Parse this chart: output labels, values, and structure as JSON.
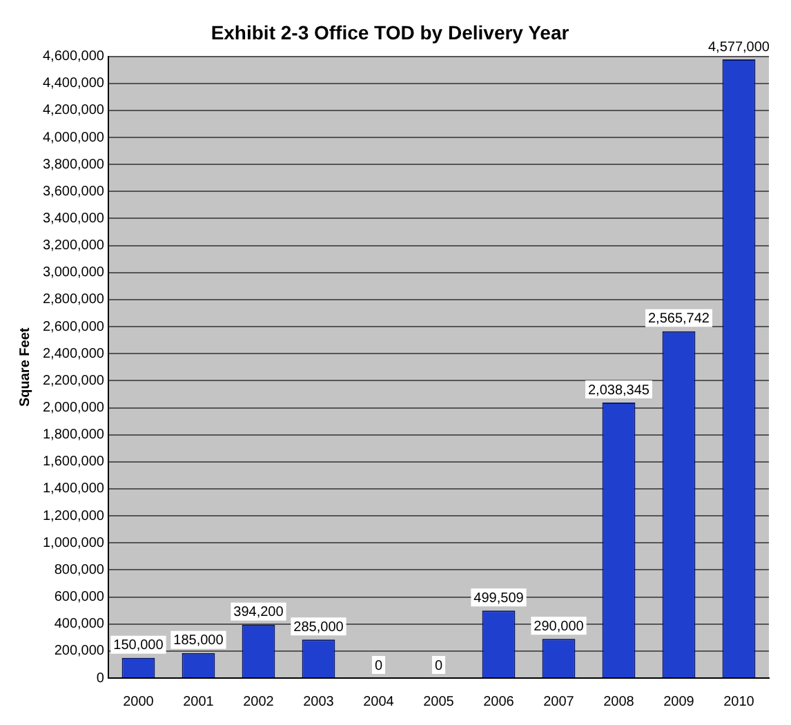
{
  "chart_data": {
    "type": "bar",
    "title": "Exhibit 2-3 Office TOD by Delivery Year",
    "ylabel": "Square Feet",
    "categories": [
      "2000",
      "2001",
      "2002",
      "2003",
      "2004",
      "2005",
      "2006",
      "2007",
      "2008",
      "2009",
      "2010"
    ],
    "values": [
      150000,
      185000,
      394200,
      285000,
      0,
      0,
      499509,
      290000,
      2038345,
      2565742,
      4577000
    ],
    "value_labels": [
      "150,000",
      "185,000",
      "394,200",
      "285,000",
      "0",
      "0",
      "499,509",
      "290,000",
      "2,038,345",
      "2,565,742",
      "4,577,000"
    ],
    "color": "#1f3fcf",
    "ylim": [
      0,
      4600000
    ],
    "yticks": [
      0,
      {
        "value": 200000,
        "label": "200,000"
      },
      {
        "value": 400000,
        "label": "400,000"
      },
      {
        "value": 600000,
        "label": "600,000"
      },
      {
        "value": 800000,
        "label": "800,000"
      },
      {
        "value": 1000000,
        "label": "1,000,000"
      },
      {
        "value": 1200000,
        "label": "1,200,000"
      },
      {
        "value": 1400000,
        "label": "1,400,000"
      },
      {
        "value": 1600000,
        "label": "1,600,000"
      },
      {
        "value": 1800000,
        "label": "1,800,000"
      },
      {
        "value": 2000000,
        "label": "2,000,000"
      },
      {
        "value": 2200000,
        "label": "2,200,000"
      },
      {
        "value": 2400000,
        "label": "2,400,000"
      },
      {
        "value": 2600000,
        "label": "2,600,000"
      },
      {
        "value": 2800000,
        "label": "2,800,000"
      },
      {
        "value": 3000000,
        "label": "3,000,000"
      },
      {
        "value": 3200000,
        "label": "3,200,000"
      },
      {
        "value": 3400000,
        "label": "3,400,000"
      },
      {
        "value": 3600000,
        "label": "3,600,000"
      },
      {
        "value": 3800000,
        "label": "3,800,000"
      },
      {
        "value": 4000000,
        "label": "4,000,000"
      },
      {
        "value": 4200000,
        "label": "4,200,000"
      },
      {
        "value": 4400000,
        "label": "4,400,000"
      },
      {
        "value": 4600000,
        "label": "4,600,000"
      }
    ],
    "grid": "y"
  }
}
